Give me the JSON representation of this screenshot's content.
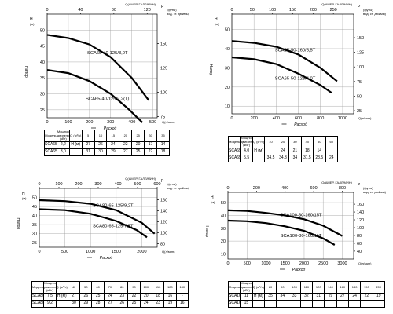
{
  "chart_data": [
    {
      "type": "line",
      "top_axis": {
        "label": "Q(АМЕР. ГАЛЛ/МИН)",
        "ticks": [
          "0",
          "40",
          "80",
          "120"
        ],
        "range": [
          0,
          132
        ]
      },
      "y_left": {
        "unit_top": "H",
        "unit_bottom": "(м)",
        "label": "Напор",
        "ticks": [
          "25",
          "30",
          "35",
          "40",
          "45",
          "50"
        ],
        "range": [
          22.5,
          55
        ]
      },
      "y_right": {
        "unit_top": "P",
        "unit_bottom": "(футы)",
        "unit_sub": "вод. ст. дюймы)",
        "ticks": [
          "75",
          "100",
          "125",
          "150"
        ],
        "range": [
          73.8,
          180.4
        ]
      },
      "x_axis": {
        "label": "Q(л/мин)",
        "caption": "Расход",
        "ticks": [
          "0",
          "100",
          "200",
          "300",
          "400",
          "500"
        ],
        "range": [
          0,
          520
        ]
      },
      "series": [
        {
          "name": "SCA65-40-125/3,0T",
          "x": [
            0,
            100,
            200,
            300,
            400,
            480
          ],
          "y": [
            48.5,
            47.5,
            45.5,
            41.5,
            35,
            28
          ]
        },
        {
          "name": "SCA65-40-125/2,2(T)",
          "x": [
            0,
            100,
            200,
            300,
            380,
            450
          ],
          "y": [
            37.5,
            36.5,
            34,
            30,
            25.5,
            21
          ]
        }
      ],
      "table": {
        "header": [
          "Модель",
          "Мощность двигателя (кВт)",
          "Q (м³/ч)",
          "5",
          "10",
          "15",
          "20",
          "25",
          "30",
          "35"
        ],
        "rows": [
          [
            "SCA65-40-125/2.2(T)",
            "2,2",
            "H (м)",
            "27",
            "26",
            "24",
            "22",
            "20",
            "17",
            "14"
          ],
          [
            "SCA65-40-125/3.0T",
            "3,0",
            "",
            "31",
            "30",
            "29",
            "27",
            "25",
            "22",
            "18"
          ]
        ]
      }
    },
    {
      "type": "line",
      "top_axis": {
        "label": "Q(АМЕР. ГАЛЛ/МИН)",
        "ticks": [
          "0",
          "50",
          "100",
          "150",
          "200",
          "250"
        ],
        "range": [
          0,
          300
        ]
      },
      "y_left": {
        "unit_top": "H",
        "unit_bottom": "(м)",
        "label": "Напор",
        "ticks": [
          "10",
          "20",
          "30",
          "40",
          "50"
        ],
        "range": [
          6,
          58
        ]
      },
      "y_right": {
        "unit_top": "P",
        "unit_bottom": "(футы)",
        "unit_sub": "вод. ст. дюймы)",
        "ticks": [
          "25",
          "50",
          "75",
          "100",
          "125",
          "150"
        ],
        "range": [
          19.7,
          190.3
        ]
      },
      "x_axis": {
        "label": "Q(л/мин)",
        "caption": "Расход",
        "ticks": [
          "0",
          "200",
          "400",
          "600",
          "800",
          "1000"
        ],
        "range": [
          0,
          1100
        ]
      },
      "series": [
        {
          "name": "SCA65-50-160/5,5T",
          "x": [
            0,
            200,
            400,
            600,
            800,
            950
          ],
          "y": [
            44,
            43,
            41,
            37,
            30,
            23
          ]
        },
        {
          "name": "SCA65-50-125/4,0T",
          "x": [
            0,
            200,
            400,
            600,
            800,
            900
          ],
          "y": [
            35.5,
            34.5,
            32,
            27,
            21,
            17
          ]
        }
      ],
      "table": {
        "header": [
          "Модель",
          "Мощность двигателя (кВт)",
          "Q (м³/ч)",
          "10",
          "20",
          "30",
          "40",
          "50",
          "60"
        ],
        "rows": [
          [
            "SCA65-50-125/4.0T",
            "4,0",
            "H (м)",
            "",
            "24",
            "21",
            "18",
            "14",
            ""
          ],
          [
            "SCA65-50-160/5.5T",
            "5,5",
            "",
            "34,5",
            "34,3",
            "34",
            "31,5",
            "28,5",
            "24"
          ]
        ]
      }
    },
    {
      "type": "line",
      "top_axis": {
        "label": "Q(АМЕР. ГАЛЛ/МИН)",
        "ticks": [
          "0",
          "100",
          "200",
          "300",
          "400",
          "500",
          "600"
        ],
        "range": [
          0,
          600
        ]
      },
      "y_left": {
        "unit_top": "H",
        "unit_bottom": "(м)",
        "label": "Напор",
        "ticks": [
          "25",
          "30",
          "35",
          "40",
          "45",
          "50"
        ],
        "range": [
          22.5,
          55
        ]
      },
      "y_right": {
        "unit_top": "P",
        "unit_bottom": "(футы)",
        "unit_sub": "вод. ст. дюймы)",
        "ticks": [
          "80",
          "100",
          "120",
          "140",
          "160"
        ],
        "range": [
          73.8,
          180.4
        ]
      },
      "x_axis": {
        "label": "Q(л/мин)",
        "caption": "Расход",
        "ticks": [
          "0",
          "500",
          "1000",
          "1500",
          "2000"
        ],
        "range": [
          0,
          2300
        ]
      },
      "series": [
        {
          "name": "SCA80-65-125/9,2T",
          "x": [
            0,
            500,
            1000,
            1500,
            2000,
            2250
          ],
          "y": [
            48.5,
            48,
            46.5,
            43,
            36,
            30
          ]
        },
        {
          "name": "SCA80-65-125/7,5T",
          "x": [
            0,
            500,
            1000,
            1500,
            1900,
            2100
          ],
          "y": [
            43.5,
            43,
            41,
            37,
            32,
            28
          ]
        }
      ],
      "table": {
        "header": [
          "Модель",
          "Мощность двигателя (кВт)",
          "Q (м³/ч)",
          "40",
          "50",
          "60",
          "70",
          "80",
          "90",
          "100",
          "110",
          "120",
          "130"
        ],
        "rows": [
          [
            "SCA80-65-125/7.5T",
            "7,5",
            "H (м)",
            "27",
            "26",
            "25",
            "24",
            "23",
            "22",
            "20",
            "18",
            "16",
            "-"
          ],
          [
            "SCA80-65-125/9.2T",
            "9,2",
            "",
            "30",
            "29",
            "28",
            "27",
            "26",
            "25",
            "24",
            "23",
            "19",
            "16"
          ]
        ]
      }
    },
    {
      "type": "line",
      "top_axis": {
        "label": "Q(АМЕР. ГАЛЛ/МИН)",
        "ticks": [
          "0",
          "200",
          "400",
          "600",
          "800"
        ],
        "range": [
          0,
          880
        ]
      },
      "y_left": {
        "unit_top": "H",
        "unit_bottom": "(м)",
        "label": "Напор",
        "ticks": [
          "10",
          "20",
          "30",
          "40",
          "50"
        ],
        "range": [
          6,
          58
        ]
      },
      "y_right": {
        "unit_top": "P",
        "unit_bottom": "(футы)",
        "unit_sub": "вод. ст. дюймы)",
        "ticks": [
          "40",
          "60",
          "80",
          "100",
          "120",
          "140",
          "160"
        ],
        "range": [
          19.7,
          190.3
        ]
      },
      "x_axis": {
        "label": "Q(л/мин)",
        "caption": "Расход",
        "ticks": [
          "0",
          "500",
          "1000",
          "1500",
          "2000",
          "2500",
          "3000"
        ],
        "range": [
          0,
          3300
        ]
      },
      "series": [
        {
          "name": "SCA100-80-160/15T",
          "x": [
            0,
            500,
            1000,
            1500,
            2000,
            2500,
            3000
          ],
          "y": [
            44,
            43.5,
            42,
            40,
            37,
            32,
            24
          ]
        },
        {
          "name": "SCA100-80-160/11T",
          "x": [
            0,
            500,
            1000,
            1500,
            2000,
            2500,
            2800
          ],
          "y": [
            36,
            35.5,
            34,
            31.5,
            28,
            22,
            17
          ]
        }
      ],
      "table": {
        "header": [
          "Модель",
          "Мощность двигателя (кВт)",
          "Q (м³/ч)",
          "80",
          "90",
          "100",
          "110",
          "120",
          "140",
          "160",
          "180",
          "190",
          "200"
        ],
        "rows": [
          [
            "SCA100-80-160/11T",
            "11",
            "H (м)",
            "35",
            "34",
            "33",
            "32",
            "31",
            "29",
            "27",
            "24",
            "22",
            "19"
          ],
          [
            "SCA100-80-160/15T",
            "15",
            "",
            "",
            "",
            "",
            "",
            "",
            "",
            "",
            "",
            "",
            ""
          ]
        ]
      }
    }
  ]
}
